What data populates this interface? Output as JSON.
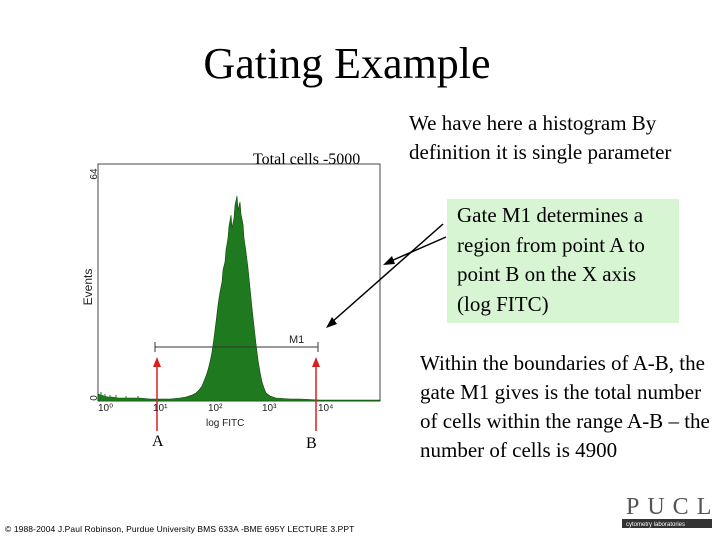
{
  "slide": {
    "title": "Gating Example",
    "total_cells": "Total cells -5000",
    "intro_text": "We have here a histogram By definition it is single parameter",
    "gate_text": "Gate M1 determines a region from point A to point B on the X axis (log FITC)",
    "bounds_text": "Within the boundaries of A-B, the gate M1 gives is the total number of cells within the range A-B – the number of cells is 4900",
    "footer": "© 1988-2004 J.Paul Robinson, Purdue University BMS 633A -BME 695Y LECTURE 3.PPT"
  },
  "histogram": {
    "y_axis_label": "Events",
    "y_tick_top": "64",
    "y_tick_bottom": "0",
    "x_axis_label": "log FITC",
    "x_ticks": [
      "10⁰",
      "10¹",
      "10²",
      "10³",
      "10⁴"
    ],
    "gate_label": "M1",
    "point_a": "A",
    "point_b": "B",
    "fill_color": "#1f7a1f",
    "marker_color": "#d82020"
  },
  "logo": {
    "letters": "PUCL",
    "subtitle": "cytometry laboratories"
  }
}
